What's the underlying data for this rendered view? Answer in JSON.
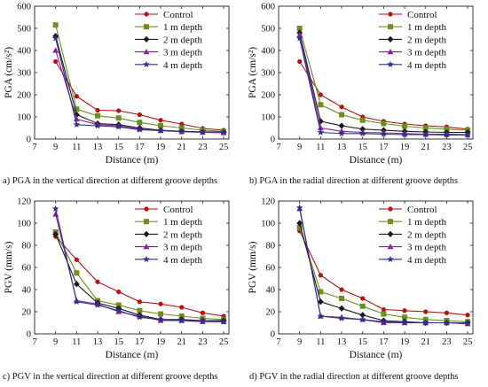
{
  "styles": {
    "series_colors": [
      "#b5120f",
      "#6a8f1e",
      "#1a1a1a",
      "#8a1f9a",
      "#2a2f8a"
    ],
    "series_markers": [
      "circle",
      "square",
      "diamond",
      "triangle",
      "star"
    ]
  },
  "chart_data": [
    {
      "type": "line",
      "caption": "a) PGA in the vertical direction at different groove depths",
      "xlabel": "Distance (m)",
      "ylabel": "PGA (cm/s²)",
      "xlim": [
        7,
        25.5
      ],
      "ylim": [
        0,
        600
      ],
      "xticks": [
        "7",
        "9",
        "11",
        "13",
        "15",
        "17",
        "19",
        "21",
        "23",
        "25"
      ],
      "yticks": [
        "0",
        "100",
        "200",
        "300",
        "400",
        "500",
        "600"
      ],
      "legend_position": "top-right",
      "x": [
        9,
        11,
        13,
        15,
        17,
        19,
        21,
        23,
        25
      ],
      "series": [
        {
          "name": "Control",
          "values": [
            350,
            193,
            130,
            128,
            110,
            85,
            68,
            48,
            40
          ]
        },
        {
          "name": "1 m depth",
          "values": [
            515,
            135,
            105,
            95,
            75,
            60,
            50,
            40,
            35
          ]
        },
        {
          "name": "2 m depth",
          "values": [
            465,
            110,
            70,
            65,
            50,
            40,
            35,
            32,
            30
          ]
        },
        {
          "name": "3 m depth",
          "values": [
            400,
            90,
            65,
            60,
            45,
            38,
            33,
            30,
            28
          ]
        },
        {
          "name": "4 m depth",
          "values": [
            455,
            65,
            60,
            55,
            42,
            38,
            35,
            33,
            32
          ]
        }
      ]
    },
    {
      "type": "line",
      "caption": "b) PGA in the radial direction at different groove depths",
      "xlabel": "Distance (m)",
      "ylabel": "PGA (cm/s²)",
      "xlim": [
        7,
        25.5
      ],
      "ylim": [
        0,
        600
      ],
      "xticks": [
        "7",
        "9",
        "11",
        "13",
        "15",
        "17",
        "19",
        "21",
        "23",
        "25"
      ],
      "yticks": [
        "0",
        "100",
        "200",
        "300",
        "400",
        "500",
        "600"
      ],
      "legend_position": "top-right",
      "x": [
        9,
        11,
        13,
        15,
        17,
        19,
        21,
        23,
        25
      ],
      "series": [
        {
          "name": "Control",
          "values": [
            350,
            200,
            145,
            100,
            80,
            68,
            60,
            55,
            45
          ]
        },
        {
          "name": "1 m depth",
          "values": [
            500,
            155,
            110,
            85,
            70,
            58,
            50,
            45,
            40
          ]
        },
        {
          "name": "2 m depth",
          "values": [
            480,
            80,
            60,
            45,
            40,
            35,
            32,
            30,
            30
          ]
        },
        {
          "name": "3 m depth",
          "values": [
            470,
            50,
            35,
            30,
            28,
            25,
            22,
            22,
            20
          ]
        },
        {
          "name": "4 m depth",
          "values": [
            455,
            30,
            25,
            25,
            22,
            20,
            20,
            18,
            18
          ]
        }
      ]
    },
    {
      "type": "line",
      "caption": "c) PGV in the vertical direction at different groove depths",
      "xlabel": "Distance (m)",
      "ylabel": "PGV (mm/s)",
      "xlim": [
        7,
        25.5
      ],
      "ylim": [
        0,
        120
      ],
      "xticks": [
        "7",
        "9",
        "11",
        "13",
        "15",
        "17",
        "19",
        "21",
        "23",
        "25"
      ],
      "yticks": [
        "0",
        "20",
        "40",
        "60",
        "80",
        "100",
        "120"
      ],
      "legend_position": "top-right",
      "x": [
        9,
        11,
        13,
        15,
        17,
        19,
        21,
        23,
        25
      ],
      "series": [
        {
          "name": "Control",
          "values": [
            88,
            67,
            47,
            38,
            29,
            27,
            24,
            19,
            16
          ]
        },
        {
          "name": "1 m depth",
          "values": [
            92,
            55,
            30,
            26,
            21,
            18,
            16,
            14,
            13
          ]
        },
        {
          "name": "2 m depth",
          "values": [
            90,
            45,
            28,
            23,
            17,
            13,
            13,
            12,
            12
          ]
        },
        {
          "name": "3 m depth",
          "values": [
            108,
            30,
            27,
            20,
            16,
            12,
            12,
            11,
            11
          ]
        },
        {
          "name": "4 m depth",
          "values": [
            113,
            29,
            26,
            21,
            15,
            13,
            12,
            12,
            11
          ]
        }
      ]
    },
    {
      "type": "line",
      "caption": "d) PGV in the radial direction at different groove depths",
      "xlabel": "Distance (m)",
      "ylabel": "PGV (mm/s)",
      "xlim": [
        7,
        25.5
      ],
      "ylim": [
        0,
        120
      ],
      "xticks": [
        "7",
        "9",
        "11",
        "13",
        "15",
        "17",
        "19",
        "21",
        "23",
        "25"
      ],
      "yticks": [
        "0",
        "20",
        "40",
        "60",
        "80",
        "100",
        "120"
      ],
      "legend_position": "top-right",
      "x": [
        9,
        11,
        13,
        15,
        17,
        19,
        21,
        23,
        25
      ],
      "series": [
        {
          "name": "Control",
          "values": [
            93,
            53,
            40,
            32,
            22,
            21,
            20,
            19,
            17
          ]
        },
        {
          "name": "1 m depth",
          "values": [
            96,
            38,
            32,
            25,
            18,
            15,
            13,
            12,
            11
          ]
        },
        {
          "name": "2 m depth",
          "values": [
            100,
            29,
            23,
            17,
            12,
            11,
            10,
            10,
            10
          ]
        },
        {
          "name": "3 m depth",
          "values": [
            113,
            16,
            15,
            13,
            10,
            10,
            10,
            10,
            9
          ]
        },
        {
          "name": "4 m depth",
          "values": [
            114,
            16,
            14,
            13,
            11,
            10,
            10,
            10,
            10
          ]
        }
      ]
    }
  ]
}
